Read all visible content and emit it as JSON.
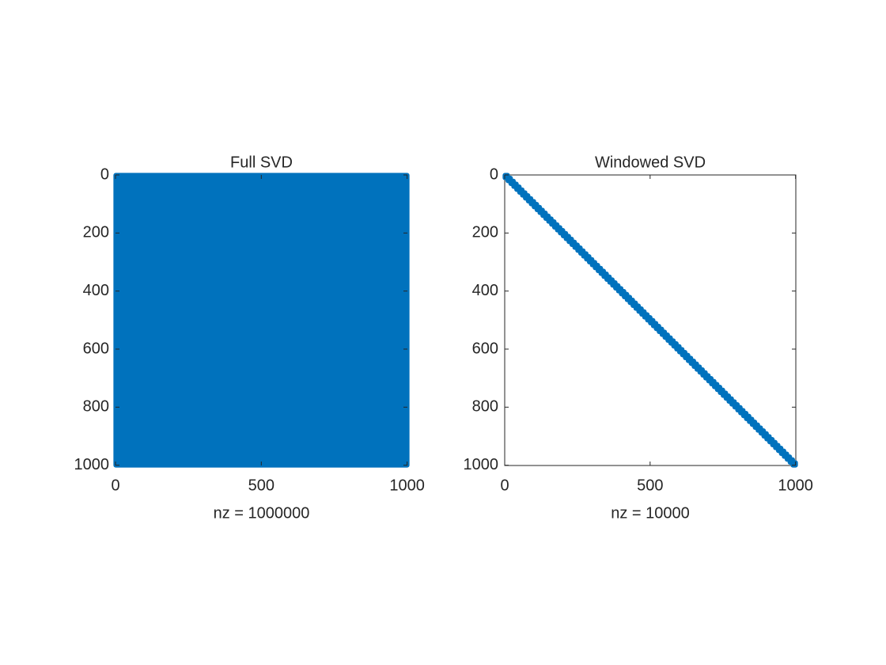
{
  "chart_data": [
    {
      "type": "spy",
      "title": "Full SVD",
      "xlabel": "nz = 1000000",
      "matrix_size": 1000,
      "block_size": 1000,
      "color": "#0072bd",
      "xlim": [
        0,
        1001
      ],
      "ylim": [
        0,
        1001
      ],
      "xticks": [
        0,
        500,
        1000
      ],
      "yticks": [
        0,
        200,
        400,
        600,
        800,
        1000
      ]
    },
    {
      "type": "spy",
      "title": "Windowed SVD",
      "xlabel": "nz = 10000",
      "matrix_size": 1000,
      "block_size": 10,
      "color": "#0072bd",
      "xlim": [
        0,
        1001
      ],
      "ylim": [
        0,
        1001
      ],
      "xticks": [
        0,
        500,
        1000
      ],
      "yticks": [
        0,
        200,
        400,
        600,
        800,
        1000
      ]
    }
  ]
}
